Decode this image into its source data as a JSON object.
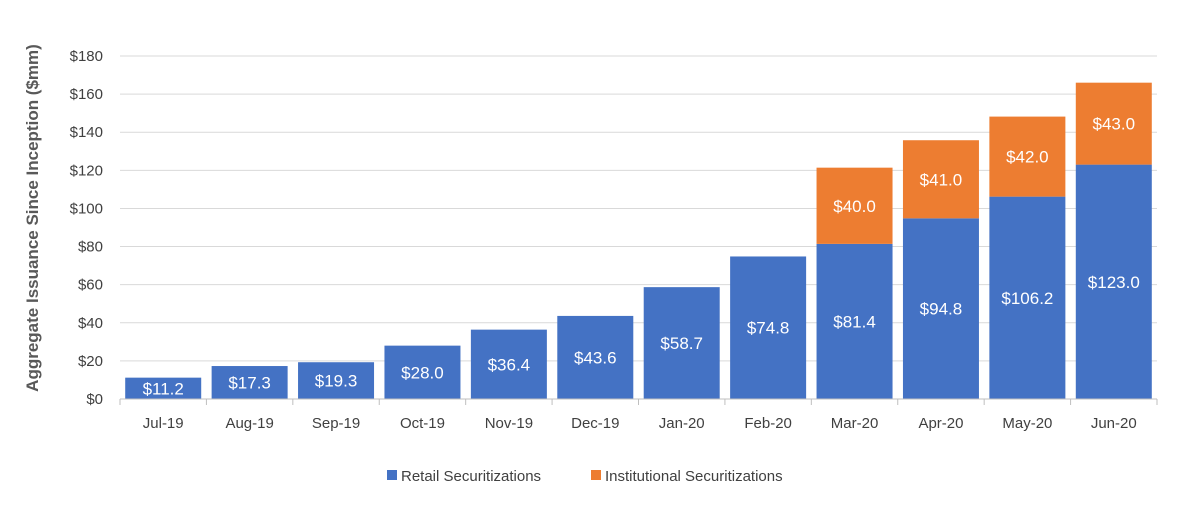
{
  "chart_data": {
    "type": "bar",
    "stacked": true,
    "title": "",
    "xlabel": "",
    "ylabel": "Aggregate Issuance Since Inception ($mm)",
    "ylim": [
      0,
      180
    ],
    "ytick_step": 20,
    "ytick_labels": [
      "$0",
      "$20",
      "$40",
      "$60",
      "$80",
      "$100",
      "$120",
      "$140",
      "$160",
      "$180"
    ],
    "grid": true,
    "legend_position": "bottom",
    "categories": [
      "Jul-19",
      "Aug-19",
      "Sep-19",
      "Oct-19",
      "Nov-19",
      "Dec-19",
      "Jan-20",
      "Feb-20",
      "Mar-20",
      "Apr-20",
      "May-20",
      "Jun-20"
    ],
    "series": [
      {
        "name": "Retail Securitizations",
        "color": "#4472C4",
        "values": [
          11.2,
          17.3,
          19.3,
          28.0,
          36.4,
          43.6,
          58.7,
          74.8,
          81.4,
          94.8,
          106.2,
          123.0
        ],
        "labels": [
          "$11.2",
          "$17.3",
          "$19.3",
          "$28.0",
          "$36.4",
          "$43.6",
          "$58.7",
          "$74.8",
          "$81.4",
          "$94.8",
          "$106.2",
          "$123.0"
        ]
      },
      {
        "name": "Institutional Securitizations",
        "color": "#ED7D31",
        "values": [
          0,
          0,
          0,
          0,
          0,
          0,
          0,
          0,
          40.0,
          41.0,
          42.0,
          43.0
        ],
        "labels": [
          "",
          "",
          "",
          "",
          "",
          "",
          "",
          "",
          "$40.0",
          "$41.0",
          "$42.0",
          "$43.0"
        ]
      }
    ]
  }
}
